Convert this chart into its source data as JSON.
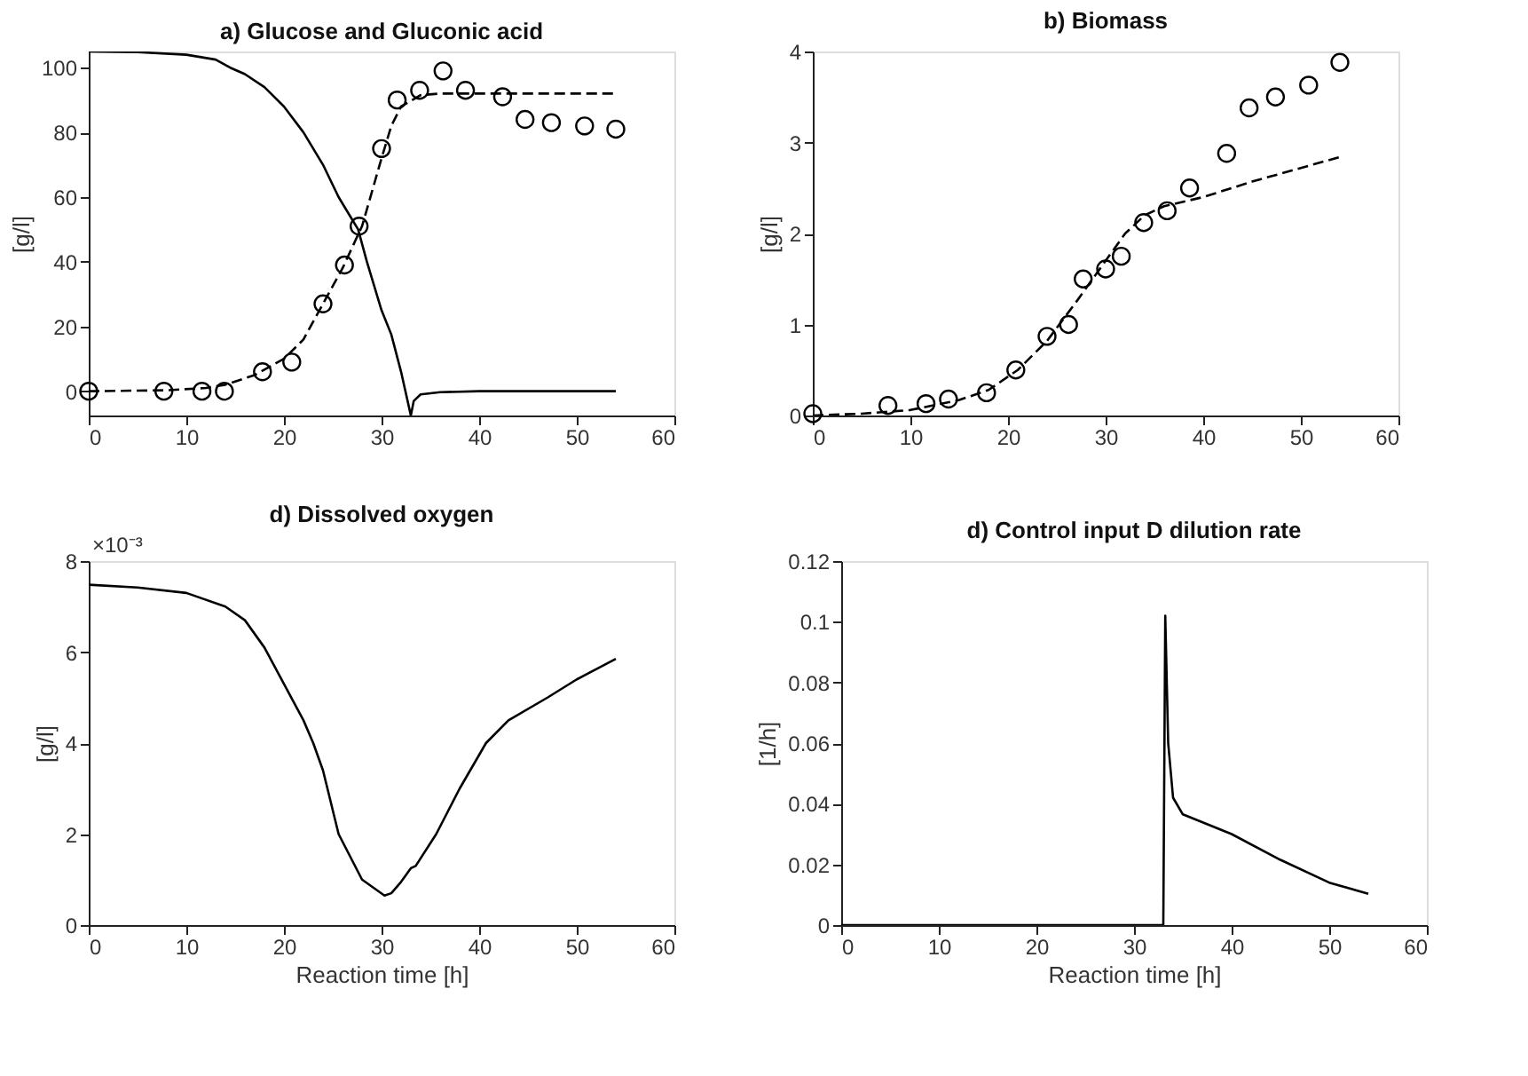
{
  "chart_data": [
    {
      "type": "line",
      "title": "a) Glucose and Gluconic acid",
      "ylabel": "[g/l]",
      "xlim": [
        0,
        60
      ],
      "xticks": [
        0,
        10,
        20,
        30,
        40,
        50,
        60
      ],
      "ylim": [
        -7.5,
        105
      ],
      "yticks": [
        0,
        20,
        40,
        60,
        80,
        100
      ],
      "series": [
        {
          "color": "#000000",
          "line_style": "solid",
          "x": [
            0,
            5,
            10,
            13,
            14.5,
            16,
            18,
            20,
            22,
            24,
            25.6,
            27.6,
            28.5,
            30,
            31,
            32,
            33,
            33.3,
            34,
            36,
            40,
            54
          ],
          "values": [
            105,
            104.8,
            104,
            102.5,
            100,
            98,
            94,
            88,
            80,
            70,
            60,
            50,
            40,
            25,
            17.5,
            6,
            -7.5,
            -3,
            -1,
            -0.3,
            0,
            0
          ]
        },
        {
          "color": "#000000",
          "line_style": "dashed",
          "x": [
            0,
            8,
            12,
            14,
            17,
            20,
            22,
            24,
            26,
            28,
            30,
            31,
            32,
            34,
            36,
            40,
            54
          ],
          "values": [
            0,
            0.3,
            1,
            2,
            5,
            10,
            16,
            27,
            38,
            51,
            72,
            82,
            88,
            91.5,
            92,
            92,
            92
          ]
        },
        {
          "type": "scatter",
          "color": "#000000",
          "marker": "circle",
          "x": [
            0,
            7.7,
            11.6,
            13.9,
            17.8,
            20.8,
            24,
            26.2,
            27.7,
            30,
            31.6,
            33.9,
            36.3,
            38.6,
            42.4,
            44.7,
            47.4,
            50.8,
            54
          ],
          "values": [
            0,
            0,
            0,
            0,
            6,
            9,
            27,
            39,
            51,
            75,
            90,
            93,
            99,
            93,
            91,
            84,
            83,
            82,
            81
          ]
        }
      ]
    },
    {
      "type": "line",
      "title": "b) Biomass",
      "ylabel": "[g/l]",
      "xlim": [
        0,
        60
      ],
      "xticks": [
        0,
        10,
        20,
        30,
        40,
        50,
        60
      ],
      "ylim": [
        0,
        4
      ],
      "yticks": [
        0,
        1,
        2,
        3,
        4
      ],
      "series": [
        {
          "color": "#000000",
          "line_style": "dashed",
          "x": [
            0,
            5,
            10,
            15,
            18,
            21,
            24,
            27,
            30,
            32,
            34,
            36,
            40,
            45,
            50,
            54
          ],
          "values": [
            0,
            0.02,
            0.06,
            0.17,
            0.28,
            0.5,
            0.82,
            1.25,
            1.7,
            2.0,
            2.2,
            2.3,
            2.4,
            2.57,
            2.72,
            2.84
          ]
        },
        {
          "type": "scatter",
          "color": "#000000",
          "marker": "circle",
          "x": [
            0,
            7.7,
            11.6,
            13.9,
            17.8,
            20.8,
            24,
            26.2,
            27.7,
            30,
            31.6,
            33.9,
            36.3,
            38.6,
            42.4,
            44.7,
            47.4,
            50.8,
            54
          ],
          "values": [
            0.02,
            0.11,
            0.13,
            0.18,
            0.25,
            0.5,
            0.87,
            1.0,
            1.5,
            1.61,
            1.75,
            2.12,
            2.25,
            2.5,
            2.88,
            3.38,
            3.5,
            3.63,
            3.88
          ]
        }
      ]
    },
    {
      "type": "line",
      "title": "d) Dissolved oxygen",
      "xlabel": "Reaction time [h]",
      "ylabel": "[g/l]",
      "annotations": [
        "×10⁻³"
      ],
      "xlim": [
        0,
        60
      ],
      "xticks": [
        0,
        10,
        20,
        30,
        40,
        50,
        60
      ],
      "ylim": [
        0,
        8
      ],
      "yticks": [
        0,
        2,
        4,
        6,
        8
      ],
      "series": [
        {
          "color": "#000000",
          "line_style": "solid",
          "x": [
            0,
            5,
            10,
            14,
            16,
            18,
            20,
            22,
            23,
            24,
            25.6,
            28,
            30.3,
            31,
            32,
            33,
            33.5,
            35.6,
            38,
            40.7,
            43,
            47,
            50,
            54
          ],
          "values": [
            7.48,
            7.42,
            7.3,
            7.0,
            6.7,
            6.1,
            5.3,
            4.5,
            4.0,
            3.4,
            2.0,
            1.0,
            0.65,
            0.7,
            0.95,
            1.25,
            1.3,
            2.0,
            3.0,
            4.0,
            4.5,
            5.0,
            5.4,
            5.85
          ]
        }
      ]
    },
    {
      "type": "line",
      "title": "d) Control input D dilution rate",
      "xlabel": "Reaction time [h]",
      "ylabel": "[1/h]",
      "xlim": [
        0,
        60
      ],
      "xticks": [
        0,
        10,
        20,
        30,
        40,
        50,
        60
      ],
      "ylim": [
        0,
        0.12
      ],
      "yticks": [
        0,
        0.02,
        0.04,
        0.06,
        0.08,
        0.1,
        0.12
      ],
      "series": [
        {
          "color": "#000000",
          "line_style": "solid",
          "x": [
            0,
            33,
            33.2,
            33.5,
            34,
            35,
            40,
            45,
            50,
            54
          ],
          "values": [
            0,
            0,
            0.102,
            0.06,
            0.042,
            0.0365,
            0.03,
            0.0215,
            0.014,
            0.0103
          ]
        }
      ]
    }
  ]
}
